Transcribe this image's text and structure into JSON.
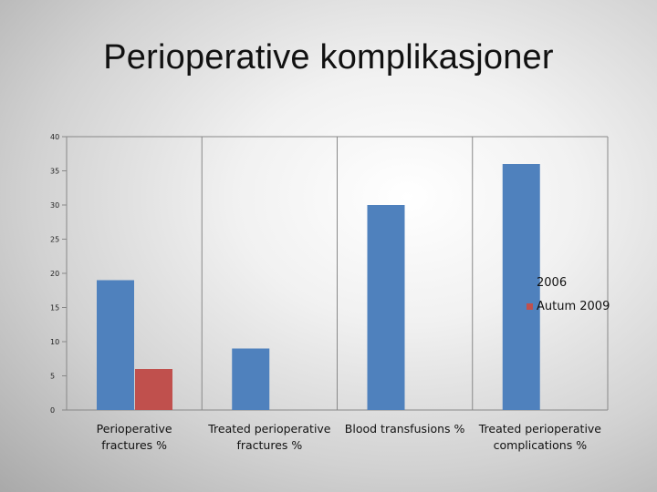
{
  "slide": {
    "title": "Perioperative komplikasjoner"
  },
  "chart_data": {
    "type": "bar",
    "categories": [
      [
        "Perioperative",
        "fractures %"
      ],
      [
        "Treated perioperative",
        "fractures %"
      ],
      [
        "Blood transfusions %"
      ],
      [
        "Treated perioperative",
        "complications %"
      ]
    ],
    "series": [
      {
        "name": "2006",
        "values": [
          19,
          9,
          30,
          36
        ]
      },
      {
        "name": "Autum 2009",
        "values": [
          6,
          null,
          null,
          null
        ]
      }
    ],
    "colors": {
      "2006": "#4f81bd",
      "Autum 2009": "#c0504d"
    },
    "ylim": [
      0,
      40
    ],
    "yticks": [
      0,
      5,
      10,
      15,
      20,
      25,
      30,
      35,
      40
    ],
    "grid": "vertical",
    "legend": "right"
  }
}
